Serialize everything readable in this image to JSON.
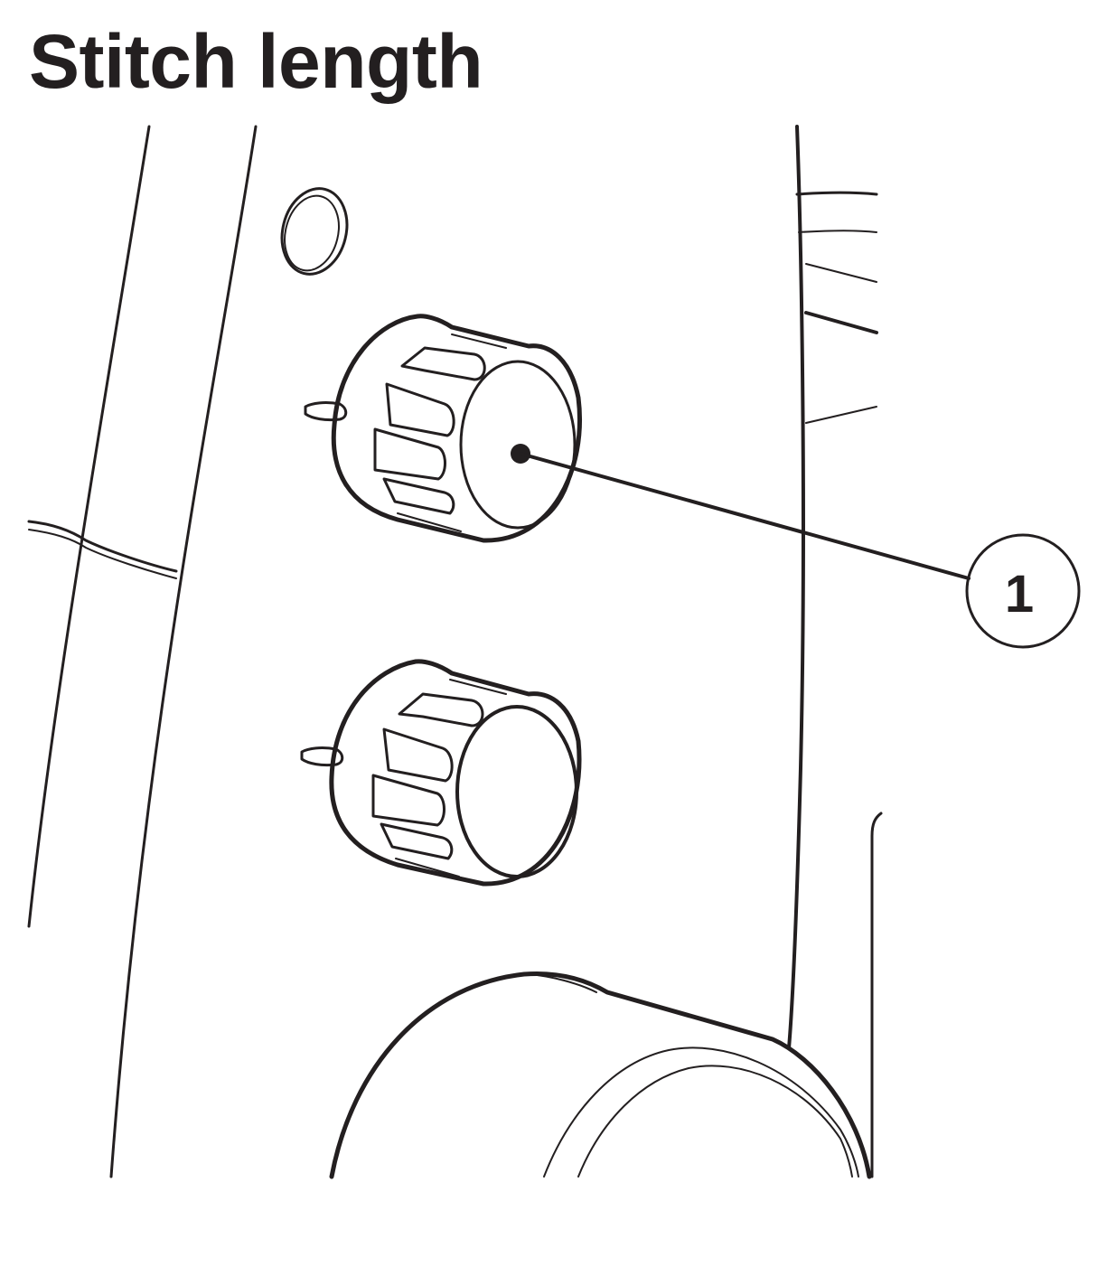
{
  "page": {
    "title": "Stitch length"
  },
  "diagram": {
    "callouts": [
      {
        "number": "1",
        "target": "stitch-length-dial"
      }
    ],
    "colors": {
      "ink": "#231f20",
      "background": "#ffffff"
    }
  }
}
